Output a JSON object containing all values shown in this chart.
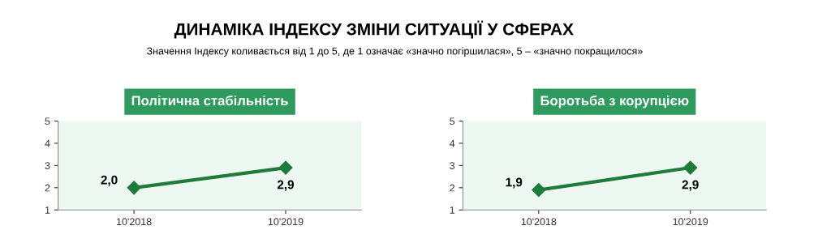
{
  "chart_data": [
    {
      "type": "line",
      "title": "Політична стабільність",
      "annotations": [
        "ДИНАМІКА ІНДЕКСУ ЗМІНИ СИТУАЦІЇ У СФЕРАХ"
      ],
      "subtitle": "Значення Індексу коливається від 1 до 5, де 1 означає «значно погіршилася», 5 – «значно покращилося»",
      "categories": [
        "10'2018",
        "10'2019"
      ],
      "series": [
        {
          "color": "#1e7b3a",
          "values": [
            2.0,
            2.9
          ],
          "value_labels": [
            "2,0",
            "2,9"
          ]
        }
      ],
      "ylim": [
        1,
        5
      ],
      "yticks": [
        1,
        2,
        3,
        4,
        5
      ],
      "marker": "diamond",
      "line_style": "solid",
      "grid": false,
      "legend": false
    },
    {
      "type": "line",
      "title": "Боротьба з корупцією",
      "categories": [
        "10'2018",
        "10'2019"
      ],
      "series": [
        {
          "color": "#1e7b3a",
          "values": [
            1.9,
            2.9
          ],
          "value_labels": [
            "1,9",
            "2,9"
          ]
        }
      ],
      "ylim": [
        1,
        5
      ],
      "yticks": [
        1,
        2,
        3,
        4,
        5
      ],
      "marker": "diamond",
      "line_style": "solid",
      "grid": false,
      "legend": false
    }
  ]
}
